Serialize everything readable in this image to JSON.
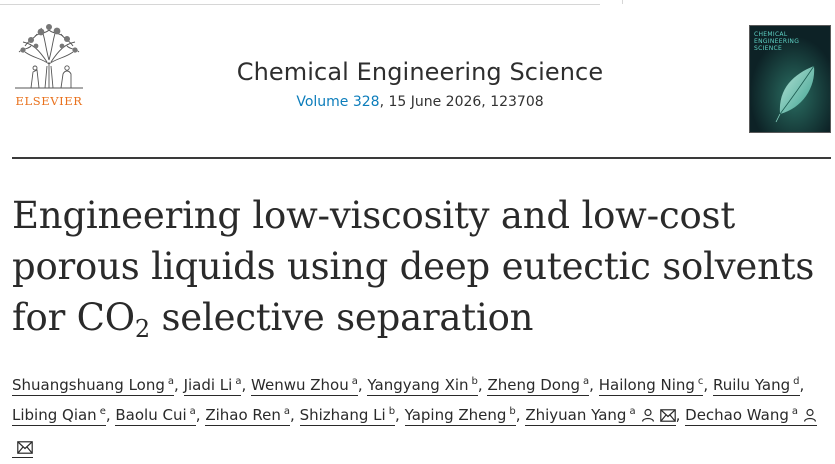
{
  "publisher": {
    "name": "ELSEVIER"
  },
  "journal": {
    "title": "Chemical Engineering Science",
    "volume_link": "Volume 328",
    "volume_rest": ", 15 June 2026, 123708"
  },
  "cover": {
    "title": "CHEMICAL ENGINEERING SCIENCE"
  },
  "article": {
    "title_main": "Engineering low-viscosity and low-cost porous liquids using deep eutectic solvents for CO",
    "title_sub": "2",
    "title_end": " selective separation"
  },
  "authors": [
    {
      "name": "Shuangshuang Long",
      "aff": "a",
      "icons": []
    },
    {
      "name": "Jiadi Li",
      "aff": "a",
      "icons": []
    },
    {
      "name": "Wenwu Zhou",
      "aff": "a",
      "icons": []
    },
    {
      "name": "Yangyang Xin",
      "aff": "b",
      "icons": []
    },
    {
      "name": "Zheng Dong",
      "aff": "a",
      "icons": []
    },
    {
      "name": "Hailong Ning",
      "aff": "c",
      "icons": []
    },
    {
      "name": "Ruilu Yang",
      "aff": "d",
      "icons": []
    },
    {
      "name": "Libing Qian",
      "aff": "e",
      "icons": []
    },
    {
      "name": "Baolu Cui",
      "aff": "a",
      "icons": []
    },
    {
      "name": "Zihao Ren",
      "aff": "a",
      "icons": []
    },
    {
      "name": "Shizhang Li",
      "aff": "b",
      "icons": []
    },
    {
      "name": "Yaping Zheng",
      "aff": "b",
      "icons": []
    },
    {
      "name": "Zhiyuan Yang",
      "aff": "a",
      "icons": [
        "person-icon",
        "envelope-icon"
      ]
    },
    {
      "name": "Dechao Wang",
      "aff": "a",
      "icons": [
        "person-icon",
        "envelope-icon"
      ]
    }
  ],
  "colors": {
    "publisher_orange": "#e9711c",
    "link_blue": "#0c7dbb"
  }
}
